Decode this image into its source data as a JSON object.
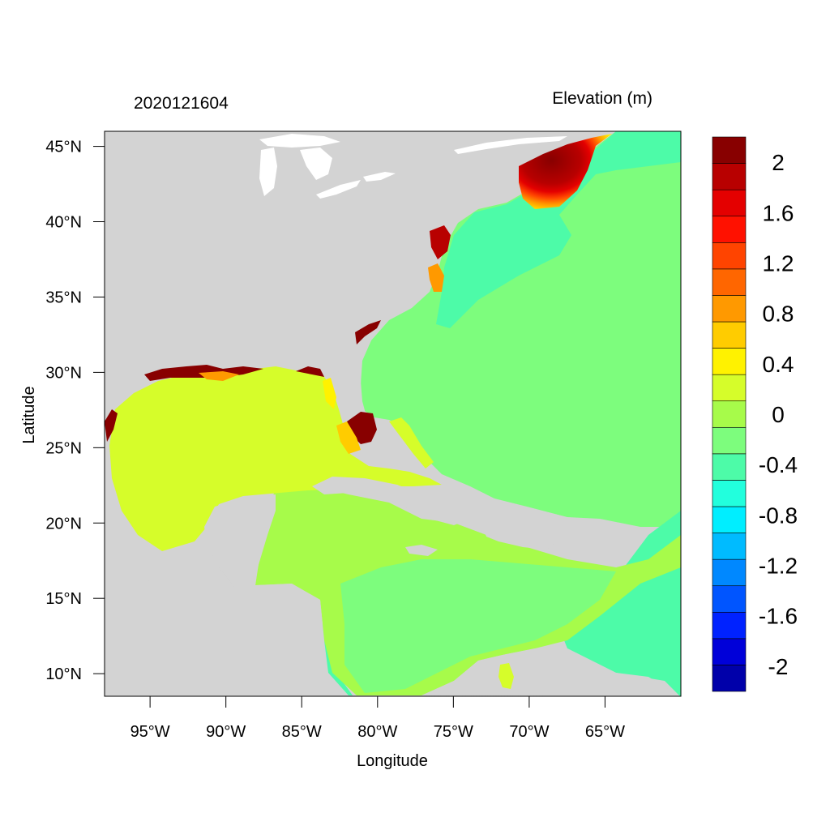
{
  "map": {
    "left_title": "2020121604",
    "right_title": "Elevation (m)",
    "x_axis_label": "Longitude",
    "y_axis_label": "Latitude",
    "lon_range": [
      -98,
      -60
    ],
    "lat_range": [
      8.5,
      46
    ],
    "x_ticks": [
      {
        "lon": -95,
        "label": "95°W"
      },
      {
        "lon": -90,
        "label": "90°W"
      },
      {
        "lon": -85,
        "label": "85°W"
      },
      {
        "lon": -80,
        "label": "80°W"
      },
      {
        "lon": -75,
        "label": "75°W"
      },
      {
        "lon": -70,
        "label": "70°W"
      },
      {
        "lon": -65,
        "label": "65°W"
      }
    ],
    "y_ticks": [
      {
        "lat": 45,
        "label": "45°N"
      },
      {
        "lat": 40,
        "label": "40°N"
      },
      {
        "lat": 35,
        "label": "35°N"
      },
      {
        "lat": 30,
        "label": "30°N"
      },
      {
        "lat": 25,
        "label": "25°N"
      },
      {
        "lat": 20,
        "label": "20°N"
      },
      {
        "lat": 15,
        "label": "15°N"
      },
      {
        "lat": 10,
        "label": "10°N"
      }
    ],
    "colors": {
      "land": "#d3d3d3",
      "open_ocean": "#7dfd7d",
      "gulf": "#d6fd2a",
      "caribbean": "#a7fb4a",
      "shelf": "#4dfba8"
    }
  },
  "colorbar": {
    "colors": [
      "#0000aa",
      "#0000d9",
      "#0022ff",
      "#0055ff",
      "#0088ff",
      "#00bbff",
      "#00eeff",
      "#22ffdd",
      "#4dfba8",
      "#7dfd7d",
      "#a7fb4a",
      "#d6fd2a",
      "#fff200",
      "#ffcc00",
      "#ff9900",
      "#ff6600",
      "#ff4400",
      "#ff1100",
      "#e40000",
      "#b80000",
      "#880000"
    ],
    "labels": [
      {
        "value": 2,
        "label": "2"
      },
      {
        "value": 1.6,
        "label": "1.6"
      },
      {
        "value": 1.2,
        "label": "1.2"
      },
      {
        "value": 0.8,
        "label": "0.8"
      },
      {
        "value": 0.4,
        "label": "0.4"
      },
      {
        "value": 0,
        "label": "0"
      },
      {
        "value": -0.4,
        "label": "-0.4"
      },
      {
        "value": -0.8,
        "label": "-0.8"
      },
      {
        "value": -1.2,
        "label": "-1.2"
      },
      {
        "value": -1.6,
        "label": "-1.6"
      },
      {
        "value": -2,
        "label": "-2"
      }
    ]
  }
}
